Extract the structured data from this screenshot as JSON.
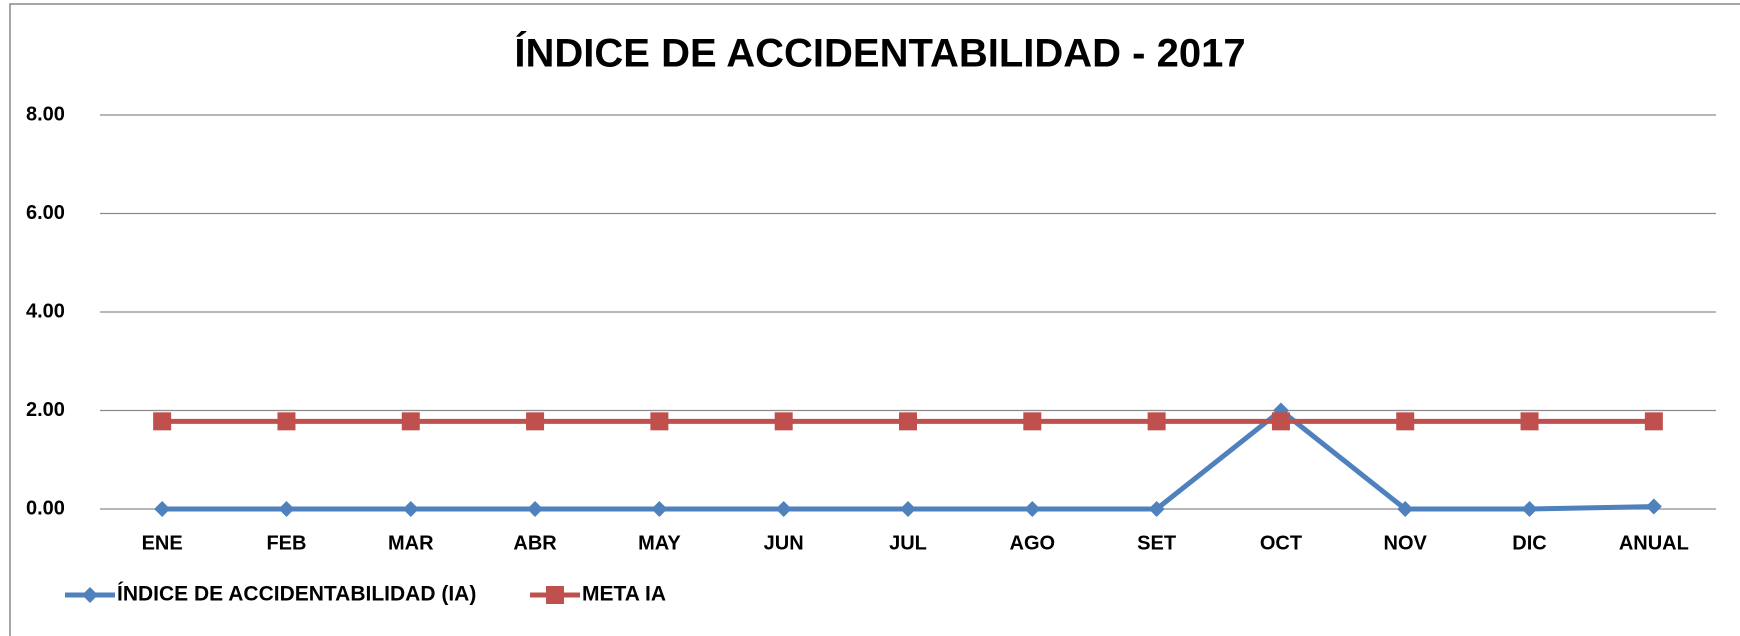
{
  "chart_data": {
    "type": "line",
    "title": "ÍNDICE DE ACCIDENTABILIDAD - 2017",
    "categories": [
      "ENE",
      "FEB",
      "MAR",
      "ABR",
      "MAY",
      "JUN",
      "JUL",
      "AGO",
      "SET",
      "OCT",
      "NOV",
      "DIC",
      "ANUAL"
    ],
    "series": [
      {
        "name": "ÍNDICE DE ACCIDENTABILIDAD (IA)",
        "color": "#4f81bd",
        "marker": "diamond",
        "values": [
          0,
          0,
          0,
          0,
          0,
          0,
          0,
          0,
          0,
          2.0,
          0,
          0,
          0.05
        ]
      },
      {
        "name": "META IA",
        "color": "#c0504d",
        "marker": "square",
        "values": [
          1.78,
          1.78,
          1.78,
          1.78,
          1.78,
          1.78,
          1.78,
          1.78,
          1.78,
          1.78,
          1.78,
          1.78,
          1.78
        ]
      }
    ],
    "ylim": [
      0,
      8
    ],
    "yticks": [
      {
        "value": 0,
        "label": "0.00"
      },
      {
        "value": 2,
        "label": "2.00"
      },
      {
        "value": 4,
        "label": "4.00"
      },
      {
        "value": 6,
        "label": "6.00"
      },
      {
        "value": 8,
        "label": "8.00"
      }
    ],
    "grid": true,
    "legend": "bottom-left"
  }
}
